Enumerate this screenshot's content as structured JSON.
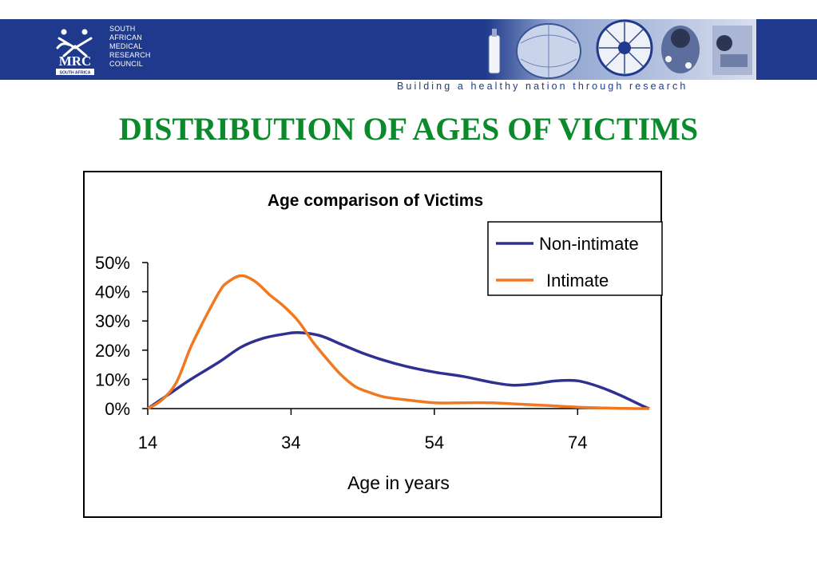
{
  "header": {
    "org_lines": [
      "SOUTH",
      "AFRICAN",
      "MEDICAL",
      "RESEARCH",
      "COUNCIL"
    ],
    "logo_text": "MRC",
    "logo_subtext": "SOUTH AFRICA",
    "tagline": "Building a healthy nation through research",
    "banner_color": "#1f3a8c"
  },
  "slide": {
    "title": "DISTRIBUTION OF AGES OF VICTIMS",
    "title_color": "#0a8a2a"
  },
  "chart_data": {
    "type": "line",
    "title": "Age comparison of Victims",
    "xlabel": "Age in years",
    "ylabel": "",
    "xlim": [
      14,
      84
    ],
    "ylim": [
      0,
      0.5
    ],
    "x_ticks": [
      14,
      34,
      54,
      74
    ],
    "y_ticks": [
      0,
      0.1,
      0.2,
      0.3,
      0.4,
      0.5
    ],
    "y_tick_labels": [
      "0%",
      "10%",
      "20%",
      "30%",
      "40%",
      "50%"
    ],
    "grid": false,
    "legend": "top-right",
    "series": [
      {
        "name": "Non-intimate",
        "color": "#2e3192",
        "x": [
          14,
          17,
          20,
          24,
          27,
          30,
          33,
          35,
          38,
          41,
          44,
          47,
          50,
          54,
          58,
          62,
          65,
          68,
          71,
          74,
          77,
          80,
          83,
          84
        ],
        "y": [
          0.0,
          0.05,
          0.1,
          0.16,
          0.21,
          0.24,
          0.255,
          0.26,
          0.25,
          0.22,
          0.19,
          0.165,
          0.145,
          0.125,
          0.11,
          0.09,
          0.08,
          0.085,
          0.095,
          0.095,
          0.075,
          0.045,
          0.01,
          0.0
        ]
      },
      {
        "name": "Intimate",
        "color": "#f07820",
        "x": [
          14,
          16,
          18,
          20,
          22,
          24,
          25,
          27,
          29,
          31,
          33,
          35,
          37,
          39,
          41,
          43,
          45,
          47,
          50,
          54,
          58,
          62,
          66,
          70,
          74,
          78,
          82,
          84
        ],
        "y": [
          0.0,
          0.03,
          0.09,
          0.21,
          0.31,
          0.4,
          0.43,
          0.455,
          0.435,
          0.39,
          0.35,
          0.3,
          0.23,
          0.17,
          0.115,
          0.075,
          0.055,
          0.04,
          0.03,
          0.02,
          0.02,
          0.02,
          0.015,
          0.01,
          0.005,
          0.002,
          0.0,
          0.0
        ]
      }
    ]
  }
}
